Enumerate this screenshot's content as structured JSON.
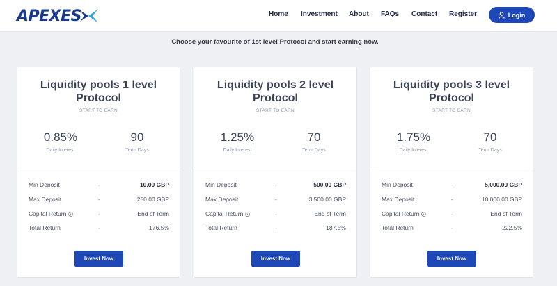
{
  "brand": {
    "name": "APEXES",
    "accent": "#1e48b8",
    "logo_color": "#1a3a8c"
  },
  "nav": {
    "items": [
      "Home",
      "Investment",
      "About",
      "FAQs",
      "Contact",
      "Register"
    ],
    "login_label": "Login",
    "login_icon": "user-icon"
  },
  "tagline": "Choose your favourite of 1st level Protocol and start earning now.",
  "plans": [
    {
      "title": "Liquidity pools 1 level Protocol",
      "subtitle": "START TO EARN",
      "interest": "0.85%",
      "interest_label": "Daily Interest",
      "term": "90",
      "term_label": "Term Days",
      "rows": [
        {
          "label": "Min Deposit",
          "dash": "-",
          "value": "10.00 GBP"
        },
        {
          "label": "Max Deposit",
          "dash": "-",
          "value": "250.00 GBP"
        },
        {
          "label": "Capital Return",
          "dash": "-",
          "value": "End of Term"
        },
        {
          "label": "Total Return",
          "dash": "-",
          "value": "176.5%"
        }
      ],
      "button": "Invest Now"
    },
    {
      "title": "Liquidity pools 2 level Protocol",
      "subtitle": "START TO EARN",
      "interest": "1.25%",
      "interest_label": "Daily Interest",
      "term": "70",
      "term_label": "Term Days",
      "rows": [
        {
          "label": "Min Deposit",
          "dash": "-",
          "value": "500.00 GBP"
        },
        {
          "label": "Max Deposit",
          "dash": "-",
          "value": "3,500.00 GBP"
        },
        {
          "label": "Capital Return",
          "dash": "-",
          "value": "End of Term"
        },
        {
          "label": "Total Return",
          "dash": "-",
          "value": "187.5%"
        }
      ],
      "button": "Invest Now"
    },
    {
      "title": "Liquidity pools 3 level Protocol",
      "subtitle": "START TO EARN",
      "interest": "1.75%",
      "interest_label": "Daily Interest",
      "term": "70",
      "term_label": "Term Days",
      "rows": [
        {
          "label": "Min Deposit",
          "dash": "-",
          "value": "5,000.00 GBP"
        },
        {
          "label": "Max Deposit",
          "dash": "-",
          "value": "10,000.00 GBP"
        },
        {
          "label": "Capital Return",
          "dash": "-",
          "value": "End of Term"
        },
        {
          "label": "Total Return",
          "dash": "-",
          "value": "222.5%"
        }
      ],
      "button": "Invest Now"
    }
  ]
}
